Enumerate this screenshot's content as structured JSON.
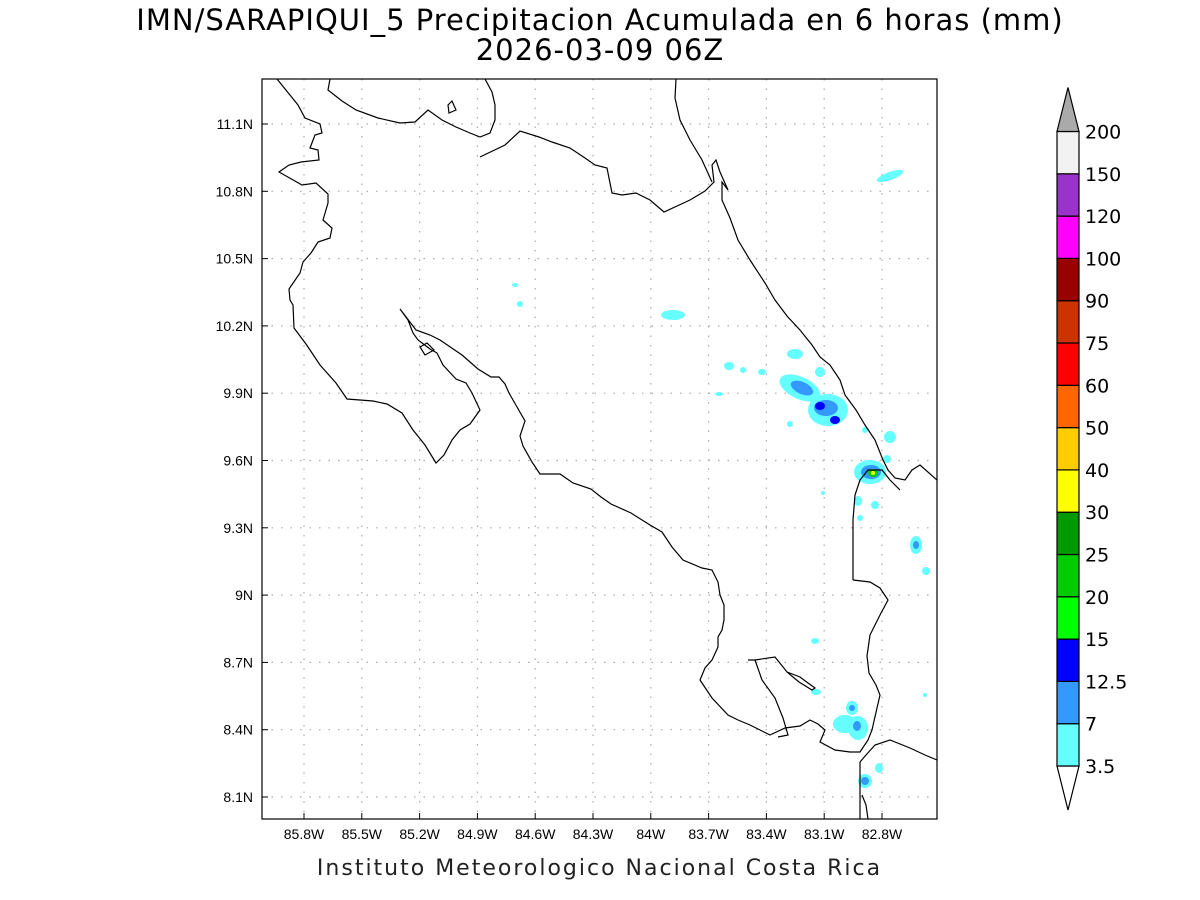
{
  "title_line1": "IMN/SARAPIQUI_5 Precipitacion Acumulada en 6 horas (mm)",
  "title_line2": "2026-03-09 06Z",
  "footer": "Instituto Meteorologico Nacional Costa Rica",
  "map": {
    "lon_labels": [
      "85.8W",
      "85.5W",
      "85.2W",
      "84.9W",
      "84.6W",
      "84.3W",
      "84W",
      "83.7W",
      "83.4W",
      "83.1W",
      "82.8W"
    ],
    "lat_labels": [
      "11.1N",
      "10.8N",
      "10.5N",
      "10.2N",
      "9.9N",
      "9.6N",
      "9.3N",
      "9N",
      "8.7N",
      "8.4N",
      "8.1N"
    ],
    "grid": true
  },
  "colorbar": {
    "labels": [
      "3.5",
      "7",
      "12.5",
      "15",
      "20",
      "25",
      "30",
      "40",
      "50",
      "60",
      "75",
      "90",
      "100",
      "120",
      "150",
      "200"
    ],
    "colors": [
      "#ffffff",
      "#66ffff",
      "#3399ff",
      "#0000ff",
      "#00ff00",
      "#00cc00",
      "#009900",
      "#ffff00",
      "#ffcc00",
      "#ff6600",
      "#ff0000",
      "#cc3300",
      "#990000",
      "#ff00ff",
      "#9933cc",
      "#f2f2f2",
      "#aaaaaa"
    ]
  }
}
